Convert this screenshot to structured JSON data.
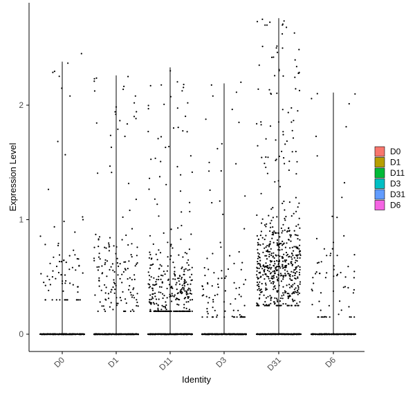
{
  "chart_data": {
    "type": "violin-jitter",
    "xlabel": "Identity",
    "ylabel": "Expression Level",
    "categories": [
      "D0",
      "D1",
      "D11",
      "D3",
      "D31",
      "D6"
    ],
    "ylim": [
      -0.15,
      2.85
    ],
    "yticks": [
      0,
      1,
      2
    ],
    "point_color": "#000000",
    "series": [
      {
        "name": "D0",
        "color": "#F8766D",
        "max": 2.38,
        "n_zero": 420,
        "n_pos": 75,
        "pos_range": [
          0.3,
          2.45
        ],
        "pos_mode": 0.5
      },
      {
        "name": "D1",
        "color": "#B79F00",
        "max": 2.26,
        "n_zero": 420,
        "n_pos": 160,
        "pos_range": [
          0.2,
          2.25
        ],
        "pos_mode": 0.45
      },
      {
        "name": "D11",
        "color": "#00BA38",
        "max": 2.33,
        "n_zero": 420,
        "n_pos": 330,
        "pos_range": [
          0.2,
          2.3
        ],
        "pos_mode": 0.35
      },
      {
        "name": "D3",
        "color": "#00BFC4",
        "max": 2.19,
        "n_zero": 420,
        "n_pos": 95,
        "pos_range": [
          0.15,
          2.2
        ],
        "pos_mode": 0.3
      },
      {
        "name": "D31",
        "color": "#619CFF",
        "max": 2.76,
        "n_zero": 420,
        "n_pos": 560,
        "pos_range": [
          0.25,
          2.75
        ],
        "pos_mode": 0.55
      },
      {
        "name": "D6",
        "color": "#F564E3",
        "max": 2.11,
        "n_zero": 420,
        "n_pos": 70,
        "pos_range": [
          0.15,
          2.1
        ],
        "pos_mode": 0.45
      }
    ]
  },
  "legend": {
    "items": [
      "D0",
      "D1",
      "D11",
      "D3",
      "D31",
      "D6"
    ],
    "colors": [
      "#F8766D",
      "#B79F00",
      "#00BA38",
      "#00BFC4",
      "#619CFF",
      "#F564E3"
    ]
  }
}
